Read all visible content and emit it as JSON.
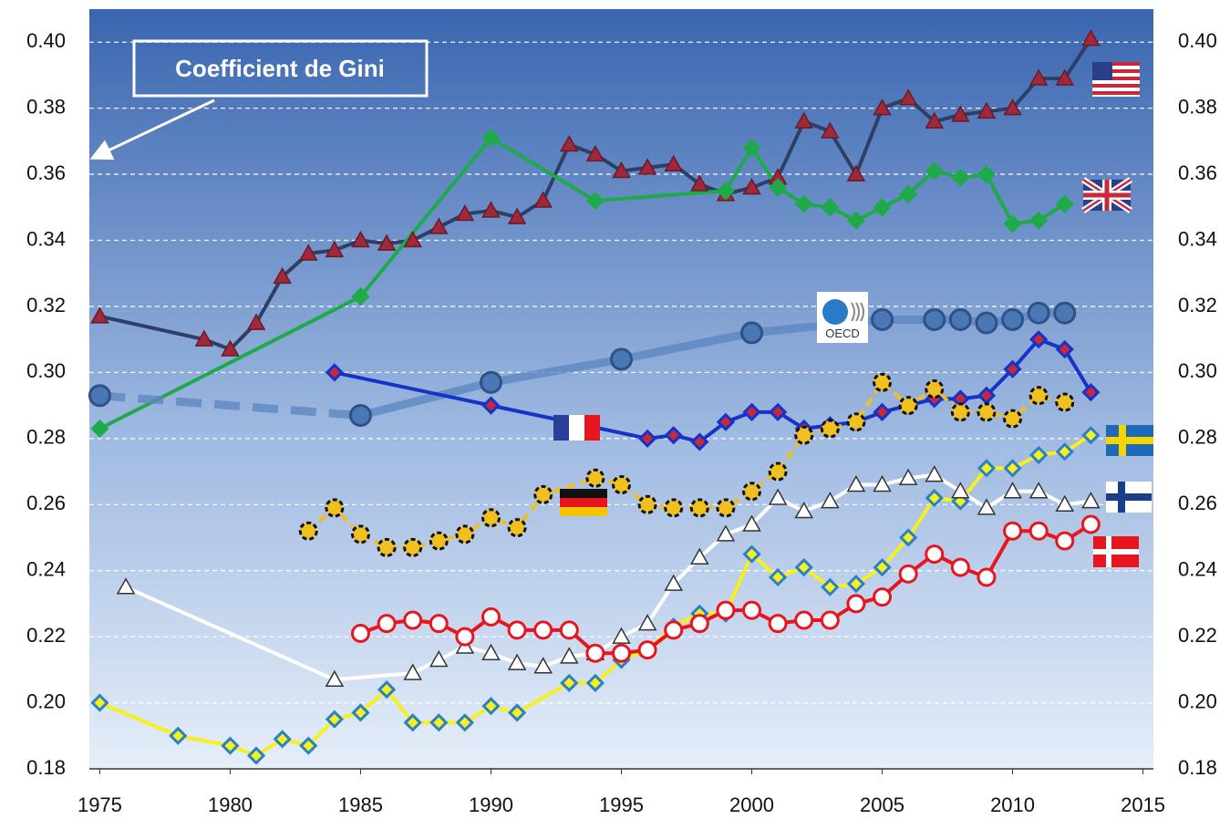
{
  "chart_data": {
    "type": "line",
    "annotations": [
      "Coefficient de Gini",
      "OECD"
    ],
    "xlim": [
      1974.6,
      2015.4
    ],
    "xticks": [
      1975,
      1980,
      1985,
      1990,
      1995,
      2000,
      2005,
      2010,
      2015
    ],
    "ylim": [
      0.18,
      0.41
    ],
    "yticks": [
      0.18,
      {
        "value": 0.2,
        "label": "0.20"
      },
      0.22,
      0.24,
      0.26,
      0.28,
      {
        "value": 0.3,
        "label": "0.30"
      },
      0.32,
      0.34,
      0.36,
      0.38,
      {
        "value": 0.4,
        "label": "0.40"
      }
    ],
    "grid": true,
    "series": [
      {
        "color": "#2e3f66",
        "marker": "triangle",
        "marker_fill": "#a0283a",
        "marker_stroke": "#6a1a28",
        "x": [
          1975,
          1979,
          1980,
          1981,
          1982,
          1983,
          1984,
          1985,
          1986,
          1987,
          1988,
          1989,
          1990,
          1991,
          1992,
          1993,
          1994,
          1995,
          1996,
          1997,
          1998,
          1999,
          2000,
          2001,
          2002,
          2003,
          2004,
          2005,
          2006,
          2007,
          2008,
          2009,
          2010,
          2011,
          2012,
          2013
        ],
        "values": [
          0.317,
          0.31,
          0.307,
          0.315,
          0.329,
          0.336,
          0.337,
          0.34,
          0.339,
          0.34,
          0.344,
          0.348,
          0.349,
          0.347,
          0.352,
          0.369,
          0.366,
          0.361,
          0.362,
          0.363,
          0.357,
          0.354,
          0.356,
          0.359,
          0.376,
          0.373,
          0.36,
          0.38,
          0.383,
          0.376,
          0.378,
          0.379,
          0.38,
          0.389,
          0.389,
          0.401
        ]
      },
      {
        "color": "#1faa4a",
        "marker": "diamond",
        "marker_fill": "#1faa4a",
        "marker_stroke": "#1faa4a",
        "x": [
          1975,
          1985,
          1990,
          1994,
          1999,
          2000,
          2001,
          2002,
          2003,
          2004,
          2005,
          2006,
          2007,
          2008,
          2009,
          2010,
          2011,
          2012
        ],
        "values": [
          0.283,
          0.323,
          0.371,
          0.352,
          0.355,
          0.368,
          0.356,
          0.351,
          0.35,
          0.346,
          0.35,
          0.354,
          0.361,
          0.359,
          0.36,
          0.345,
          0.346,
          0.351
        ]
      },
      {
        "color": "#5a86c0",
        "marker": "circle",
        "marker_fill": "#4a78b4",
        "marker_stroke": "#2e5288",
        "line_width": 9,
        "dashed_segments": [
          0
        ],
        "x": [
          1975,
          1985,
          1990,
          1995,
          2000,
          2005,
          2007,
          2008,
          2009,
          2010,
          2011,
          2012
        ],
        "values": [
          0.293,
          0.287,
          0.297,
          0.304,
          0.312,
          0.316,
          0.316,
          0.316,
          0.315,
          0.316,
          0.318,
          0.318
        ]
      },
      {
        "color": "#1632c8",
        "marker": "diamond",
        "marker_fill": "#c8283a",
        "marker_stroke": "#1632c8",
        "x": [
          1984,
          1990,
          1996,
          1997,
          1998,
          1999,
          2000,
          2001,
          2002,
          2003,
          2004,
          2005,
          2006,
          2007,
          2008,
          2009,
          2010,
          2011,
          2012,
          2013
        ],
        "values": [
          0.3,
          0.29,
          0.28,
          0.281,
          0.279,
          0.285,
          0.288,
          0.288,
          0.283,
          0.284,
          0.285,
          0.288,
          0.29,
          0.292,
          0.292,
          0.293,
          0.301,
          0.31,
          0.307,
          0.294
        ]
      },
      {
        "color": "#f0c020",
        "marker": "circle",
        "marker_fill": "#f0c020",
        "marker_stroke": "#111111",
        "dashed_line": true,
        "x": [
          1983,
          1984,
          1985,
          1986,
          1987,
          1988,
          1989,
          1990,
          1991,
          1992,
          1994,
          1995,
          1996,
          1997,
          1998,
          1999,
          2000,
          2001,
          2002,
          2003,
          2004,
          2005,
          2006,
          2007,
          2008,
          2009,
          2010,
          2011,
          2012
        ],
        "values": [
          0.252,
          0.259,
          0.251,
          0.247,
          0.247,
          0.249,
          0.251,
          0.256,
          0.253,
          0.263,
          0.268,
          0.266,
          0.26,
          0.259,
          0.259,
          0.259,
          0.264,
          0.27,
          0.281,
          0.283,
          0.285,
          0.297,
          0.29,
          0.295,
          0.288,
          0.288,
          0.286,
          0.293,
          0.291
        ]
      },
      {
        "color": "#f5f01e",
        "marker": "diamond",
        "marker_fill": "#f5f01e",
        "marker_stroke": "#2a80c8",
        "x": [
          1975,
          1978,
          1980,
          1981,
          1982,
          1983,
          1984,
          1985,
          1986,
          1987,
          1988,
          1989,
          1990,
          1991,
          1993,
          1994,
          1995,
          1996,
          1997,
          1998,
          1999,
          2000,
          2001,
          2002,
          2003,
          2004,
          2005,
          2006,
          2007,
          2008,
          2009,
          2010,
          2011,
          2012,
          2013
        ],
        "values": [
          0.2,
          0.19,
          0.187,
          0.184,
          0.189,
          0.187,
          0.195,
          0.197,
          0.204,
          0.194,
          0.194,
          0.194,
          0.199,
          0.197,
          0.206,
          0.206,
          0.213,
          0.216,
          0.223,
          0.227,
          0.227,
          0.245,
          0.238,
          0.241,
          0.235,
          0.236,
          0.241,
          0.25,
          0.262,
          0.261,
          0.271,
          0.271,
          0.275,
          0.276,
          0.281
        ]
      },
      {
        "color": "#ffffff",
        "marker": "triangle",
        "marker_fill": "#ffffff",
        "marker_stroke": "#333333",
        "x": [
          1976,
          1984,
          1987,
          1988,
          1989,
          1990,
          1991,
          1992,
          1993,
          1994,
          1995,
          1996,
          1997,
          1998,
          1999,
          2000,
          2001,
          2002,
          2003,
          2004,
          2005,
          2006,
          2007,
          2008,
          2009,
          2010,
          2011,
          2012,
          2013
        ],
        "values": [
          0.235,
          0.207,
          0.209,
          0.213,
          0.217,
          0.215,
          0.212,
          0.211,
          0.214,
          0.215,
          0.22,
          0.224,
          0.236,
          0.244,
          0.251,
          0.254,
          0.262,
          0.258,
          0.261,
          0.266,
          0.266,
          0.268,
          0.269,
          0.264,
          0.259,
          0.264,
          0.264,
          0.26,
          0.261
        ]
      },
      {
        "color": "#e8141e",
        "marker": "circle",
        "marker_fill": "#ffffff",
        "marker_stroke": "#e8141e",
        "x": [
          1985,
          1986,
          1987,
          1988,
          1989,
          1990,
          1991,
          1992,
          1993,
          1994,
          1995,
          1996,
          1997,
          1998,
          1999,
          2000,
          2001,
          2002,
          2003,
          2004,
          2005,
          2006,
          2007,
          2008,
          2009,
          2010,
          2011,
          2012,
          2013
        ],
        "values": [
          0.221,
          0.224,
          0.225,
          0.224,
          0.22,
          0.226,
          0.222,
          0.222,
          0.222,
          0.215,
          0.215,
          0.216,
          0.222,
          0.224,
          0.228,
          0.228,
          0.224,
          0.225,
          0.225,
          0.23,
          0.232,
          0.239,
          0.245,
          0.241,
          0.238,
          0.252,
          0.252,
          0.249,
          0.254
        ]
      }
    ]
  }
}
